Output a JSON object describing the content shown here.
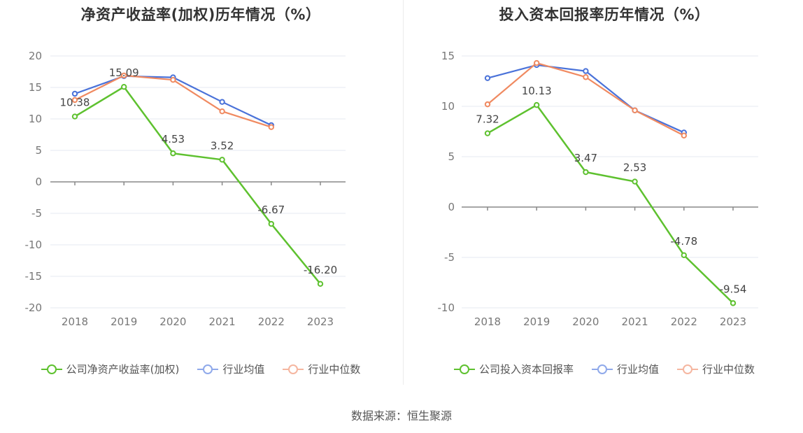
{
  "source": "数据来源：恒生聚源",
  "charts": [
    {
      "title": "净资产收益率(加权)历年情况（%）",
      "legend": [
        "公司净资产收益率(加权)",
        "行业均值",
        "行业中位数"
      ],
      "colors": [
        "#5ec12f",
        "#4a72d9",
        "#f08a61"
      ],
      "legend_colors": [
        "#5ec12f",
        "#8fa9ea",
        "#f5b6a0"
      ],
      "chart_data": {
        "type": "line",
        "x": [
          "2018",
          "2019",
          "2020",
          "2021",
          "2022",
          "2023"
        ],
        "ylim": [
          -20,
          20
        ],
        "yticks": [
          -20,
          -15,
          -10,
          -5,
          0,
          5,
          10,
          15,
          20
        ],
        "series": [
          {
            "name": "公司净资产收益率(加权)",
            "values": [
              10.38,
              15.09,
              4.53,
              3.52,
              -6.67,
              -16.2
            ],
            "labels": [
              "10.38",
              "15.09",
              "4.53",
              "3.52",
              "-6.67",
              "-16.20"
            ]
          },
          {
            "name": "行业均值",
            "values": [
              14.0,
              16.8,
              16.6,
              12.7,
              9.0,
              null
            ]
          },
          {
            "name": "行业中位数",
            "values": [
              13.0,
              16.9,
              16.2,
              11.2,
              8.7,
              null
            ]
          }
        ]
      }
    },
    {
      "title": "投入资本回报率历年情况（%）",
      "legend": [
        "公司投入资本回报率",
        "行业均值",
        "行业中位数"
      ],
      "colors": [
        "#5ec12f",
        "#4a72d9",
        "#f08a61"
      ],
      "legend_colors": [
        "#5ec12f",
        "#8fa9ea",
        "#f5b6a0"
      ],
      "chart_data": {
        "type": "line",
        "x": [
          "2018",
          "2019",
          "2020",
          "2021",
          "2022",
          "2023"
        ],
        "ylim": [
          -10,
          15
        ],
        "yticks": [
          -10,
          -5,
          0,
          5,
          10,
          15
        ],
        "series": [
          {
            "name": "公司投入资本回报率",
            "values": [
              7.32,
              10.13,
              3.47,
              2.53,
              -4.78,
              -9.54
            ],
            "labels": [
              "7.32",
              "10.13",
              "3.47",
              "2.53",
              "-4.78",
              "-9.54"
            ]
          },
          {
            "name": "行业均值",
            "values": [
              12.8,
              14.1,
              13.5,
              9.6,
              7.4,
              null
            ]
          },
          {
            "name": "行业中位数",
            "values": [
              10.2,
              14.3,
              12.9,
              9.6,
              7.1,
              null
            ]
          }
        ]
      }
    }
  ]
}
